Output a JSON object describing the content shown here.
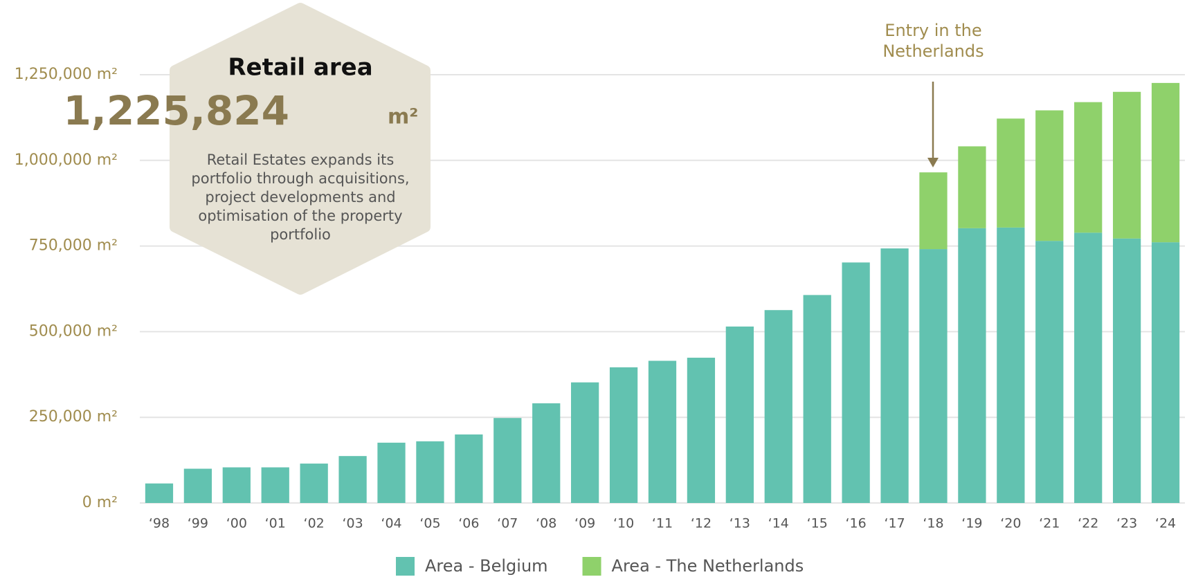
{
  "chart_data": {
    "type": "stacked_bar",
    "categories": [
      "‘98",
      "‘99",
      "‘00",
      "‘01",
      "‘02",
      "‘03",
      "‘04",
      "‘05",
      "‘06",
      "‘07",
      "‘08",
      "‘09",
      "‘10",
      "‘11",
      "‘12",
      "‘13",
      "‘14",
      "‘15",
      "‘16",
      "‘17",
      "‘18",
      "‘19",
      "‘20",
      "‘21",
      "‘22",
      "‘23",
      "‘24"
    ],
    "series": [
      {
        "name": "Area - Belgium",
        "color": "#62c2b0",
        "values": [
          57000,
          100000,
          104000,
          104000,
          115000,
          137000,
          176000,
          180000,
          200000,
          248000,
          291000,
          352000,
          396000,
          415000,
          424000,
          515000,
          563000,
          607000,
          702000,
          743000,
          741000,
          802000,
          804000,
          765000,
          789000,
          772000,
          761000
        ]
      },
      {
        "name": "Area - The Netherlands",
        "color": "#8fd16b",
        "values": [
          null,
          null,
          null,
          null,
          null,
          null,
          null,
          null,
          null,
          null,
          null,
          null,
          null,
          null,
          null,
          null,
          null,
          null,
          null,
          null,
          224000,
          239000,
          318000,
          381000,
          381000,
          428000,
          465000
        ]
      }
    ],
    "ylim": [
      0,
      1250000
    ],
    "yticks": [
      {
        "value": 0,
        "label": "0 m²"
      },
      {
        "value": 250000,
        "label": "250,000 m²"
      },
      {
        "value": 500000,
        "label": "500,000 m²"
      },
      {
        "value": 750000,
        "label": "750,000 m²"
      },
      {
        "value": 1000000,
        "label": "1,000,000 m²"
      },
      {
        "value": 1250000,
        "label": "1,250,000 m²"
      }
    ],
    "grid": true,
    "annotation": [
      "Entry in the",
      "Netherlands"
    ],
    "callout": {
      "title": "Retail area",
      "value": "1,225,824",
      "unit": "m²",
      "text": [
        "Retail Estates expands its",
        "portfolio through acquisitions,",
        "project developments and",
        "optimisation of the property",
        "portfolio"
      ]
    }
  }
}
